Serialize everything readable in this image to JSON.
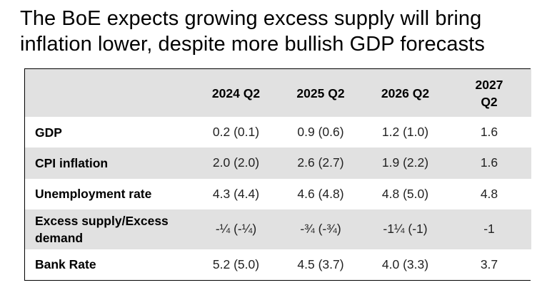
{
  "title": {
    "line1": "The BoE expects growing excess supply will bring",
    "line2": "inflation lower, despite more bullish GDP forecasts"
  },
  "table": {
    "columns": [
      "",
      "2024 Q2",
      "2025 Q2",
      "2026 Q2",
      "2027 Q2"
    ],
    "column_last_line1": "2027",
    "column_last_line2": "Q2",
    "rows": [
      {
        "label": "GDP",
        "values": [
          "0.2 (0.1)",
          "0.9 (0.6)",
          "1.2 (1.0)",
          "1.6"
        ]
      },
      {
        "label": "CPI inflation",
        "values": [
          "2.0 (2.0)",
          "2.6 (2.7)",
          "1.9 (2.2)",
          "1.6"
        ]
      },
      {
        "label": "Unemployment rate",
        "values": [
          "4.3 (4.4)",
          "4.6 (4.8)",
          "4.8 (5.0)",
          "4.8"
        ]
      },
      {
        "label_line1": "Excess supply/Excess",
        "label_line2": "demand",
        "values": [
          "-¼ (-¼)",
          "-¾ (-¾)",
          "-1¼ (-1)",
          "-1"
        ]
      },
      {
        "label": "Bank Rate",
        "values": [
          "5.2 (5.0)",
          "4.5 (3.7)",
          "4.0 (3.3)",
          "3.7"
        ]
      }
    ]
  }
}
